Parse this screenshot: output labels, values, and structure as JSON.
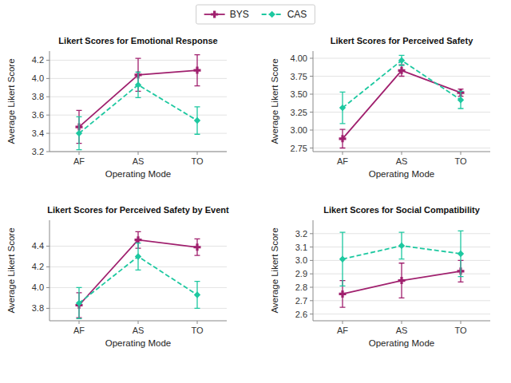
{
  "chart_data": [
    {
      "type": "line",
      "title": "Likert Scores for Emotional Response",
      "xlabel": "Operating Mode",
      "ylabel": "Average Likert Score",
      "categories": [
        "AF",
        "AS",
        "TO"
      ],
      "series": [
        {
          "name": "BYS",
          "color": "#A0206E",
          "marker": "plus",
          "line_style": "solid",
          "values": [
            3.47,
            4.04,
            4.09
          ],
          "errors": [
            0.18,
            0.18,
            0.17
          ]
        },
        {
          "name": "CAS",
          "color": "#1DC8A0",
          "marker": "diamond",
          "line_style": "dashed",
          "values": [
            3.4,
            3.93,
            3.54
          ],
          "errors": [
            0.18,
            0.14,
            0.15
          ]
        }
      ],
      "ylim": [
        3.2,
        4.3
      ],
      "yticks": [
        3.2,
        3.4,
        3.6,
        3.8,
        {
          "value": 4.0,
          "label": "4.0"
        },
        4.2
      ],
      "grid": true,
      "legend": "top"
    },
    {
      "type": "line",
      "title": "Likert Scores for Perceived Safety",
      "xlabel": "Operating Mode",
      "ylabel": "Average Likert Score",
      "categories": [
        "AF",
        "AS",
        "TO"
      ],
      "series": [
        {
          "name": "BYS",
          "color": "#A0206E",
          "marker": "plus",
          "line_style": "solid",
          "values": [
            2.88,
            3.83,
            3.52
          ],
          "errors": [
            0.13,
            0.08,
            0.05
          ]
        },
        {
          "name": "CAS",
          "color": "#1DC8A0",
          "marker": "diamond",
          "line_style": "dashed",
          "values": [
            3.31,
            3.97,
            3.42
          ],
          "errors": [
            0.22,
            0.07,
            0.12
          ]
        }
      ],
      "ylim": [
        2.7,
        4.1
      ],
      "yticks": [
        2.75,
        {
          "value": 3.0,
          "label": "3.00"
        },
        3.25,
        {
          "value": 3.5,
          "label": "3.50"
        },
        3.75,
        {
          "value": 4.0,
          "label": "4.00"
        }
      ],
      "grid": true,
      "legend": "top"
    },
    {
      "type": "line",
      "title": "Likert Scores for Perceived Safety by Event",
      "xlabel": "Operating Mode",
      "ylabel": "Average Likert Score",
      "categories": [
        "AF",
        "AS",
        "TO"
      ],
      "series": [
        {
          "name": "BYS",
          "color": "#A0206E",
          "marker": "plus",
          "line_style": "solid",
          "values": [
            3.83,
            4.46,
            4.39
          ],
          "errors": [
            0.12,
            0.08,
            0.08
          ]
        },
        {
          "name": "CAS",
          "color": "#1DC8A0",
          "marker": "diamond",
          "line_style": "dashed",
          "values": [
            3.85,
            4.3,
            3.93
          ],
          "errors": [
            0.15,
            0.13,
            0.13
          ]
        }
      ],
      "ylim": [
        3.68,
        4.65
      ],
      "yticks": [
        3.8,
        {
          "value": 4.0,
          "label": "4.0"
        },
        4.2,
        4.4
      ],
      "grid": true,
      "legend": "top"
    },
    {
      "type": "line",
      "title": "Likert Scores for Social Compatibility",
      "xlabel": "Operating Mode",
      "ylabel": "Average Likert Score",
      "categories": [
        "AF",
        "AS",
        "TO"
      ],
      "series": [
        {
          "name": "BYS",
          "color": "#A0206E",
          "marker": "plus",
          "line_style": "solid",
          "values": [
            2.75,
            2.85,
            2.92
          ],
          "errors": [
            0.1,
            0.13,
            0.08
          ]
        },
        {
          "name": "CAS",
          "color": "#1DC8A0",
          "marker": "diamond",
          "line_style": "dashed",
          "values": [
            3.01,
            3.11,
            3.05
          ],
          "errors": [
            0.2,
            0.1,
            0.17
          ]
        }
      ],
      "ylim": [
        2.55,
        3.3
      ],
      "yticks": [
        2.6,
        2.7,
        2.8,
        2.9,
        {
          "value": 3.0,
          "label": "3.0"
        },
        3.1,
        3.2
      ],
      "grid": true,
      "legend": "top"
    }
  ]
}
